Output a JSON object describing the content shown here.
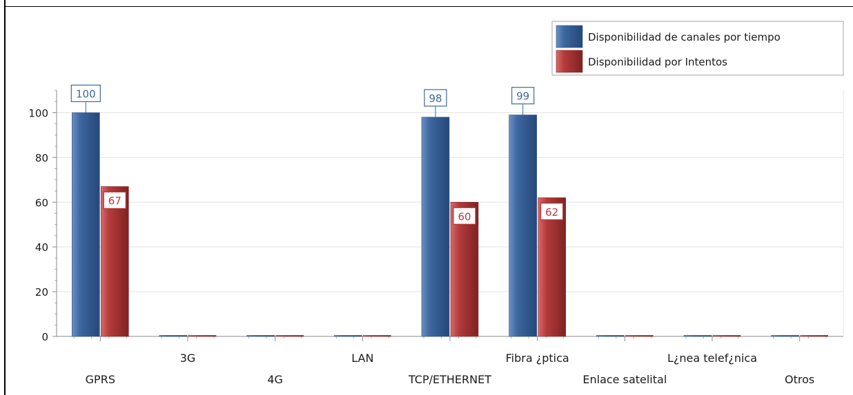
{
  "chart_data": {
    "type": "bar",
    "categories": [
      "GPRS",
      "3G",
      "4G",
      "LAN",
      "TCP/ETHERNET",
      "Fibra ¿ptica",
      "Enlace satelital",
      "L¿nea telef¿nica",
      "Otros"
    ],
    "series": [
      {
        "name": "Disponibilidad de canales por tiempo",
        "values": [
          100,
          0,
          0,
          0,
          98,
          99,
          0,
          0,
          0
        ],
        "labels": [
          "100",
          "",
          "",
          "",
          "98",
          "99",
          "",
          "",
          ""
        ],
        "color": "#3d679f"
      },
      {
        "name": "Disponibilidad por Intentos",
        "values": [
          67,
          0,
          0,
          0,
          60,
          62,
          0,
          0,
          0
        ],
        "labels": [
          "67",
          "",
          "",
          "",
          "60",
          "62",
          "",
          "",
          ""
        ],
        "color": "#b43b3b"
      }
    ],
    "ylim": [
      0,
      110
    ],
    "yticks": [
      0,
      20,
      40,
      60,
      80,
      100
    ],
    "grid": true,
    "legend": "top-right"
  }
}
